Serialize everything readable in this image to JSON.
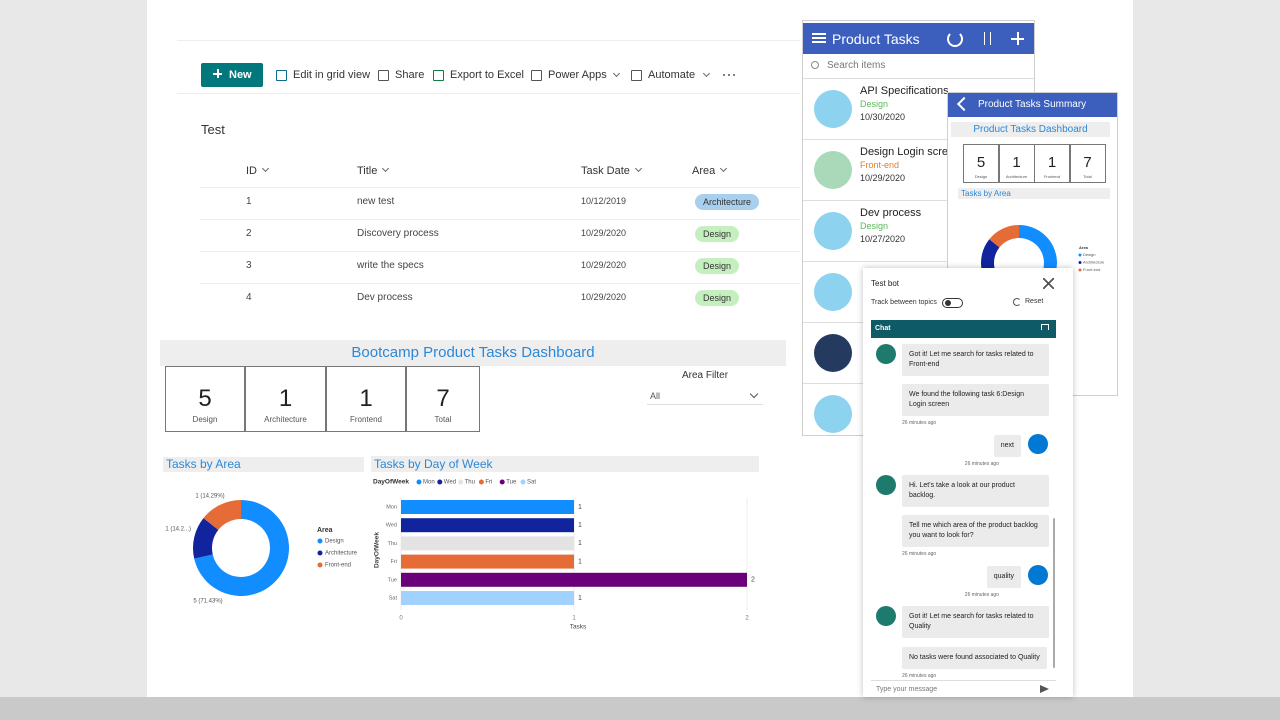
{
  "sharepoint": {
    "toolbar": {
      "new": "New",
      "items": [
        "Edit in grid view",
        "Share",
        "Export to Excel",
        "Power Apps",
        "Automate"
      ]
    },
    "list_title": "Test",
    "columns": [
      "ID",
      "Title",
      "Task Date",
      "Area"
    ],
    "rows": [
      [
        1,
        "new test",
        "10/12/2019",
        "Architecture"
      ],
      [
        2,
        "Discovery process",
        "10/29/2020",
        "Design"
      ],
      [
        3,
        "write the specs",
        "10/29/2020",
        "Design"
      ],
      [
        4,
        "Dev process",
        "10/29/2020",
        "Design"
      ]
    ]
  },
  "dashboard": {
    "title": "Bootcamp Product Tasks Dashboard",
    "cards": [
      {
        "value": 5,
        "label": "Design"
      },
      {
        "value": 1,
        "label": "Architecture"
      },
      {
        "value": 1,
        "label": "Frontend"
      },
      {
        "value": 7,
        "label": "Total"
      }
    ],
    "filter": {
      "label": "Area Filter",
      "value": "All"
    },
    "donut": {
      "type": "donut",
      "title": "Tasks by Area",
      "legend_title": "Area",
      "categories": [
        "Design",
        "Architecture",
        "Front-end"
      ],
      "values": [
        5,
        1,
        1
      ],
      "value_labels": [
        "5 (71.43%)",
        "1 (14.2...)",
        "1 (14.29%)"
      ],
      "colors": [
        "#118dff",
        "#12239e",
        "#e66c37"
      ]
    },
    "bar": {
      "type": "bar",
      "title": "Tasks by Day of Week",
      "legend_title": "DayOfWeek",
      "categories": [
        "Mon",
        "Wed",
        "Thu",
        "Fri",
        "Tue",
        "Sat"
      ],
      "values": [
        1,
        1,
        1,
        1,
        2,
        1
      ],
      "colors": [
        "#118dff",
        "#12239e",
        "#e3e3e3",
        "#e66c37",
        "#6b007b",
        "#a0d1ff"
      ],
      "xlim": [
        0,
        2
      ],
      "xticks": [
        0,
        1,
        2
      ],
      "x_label": "Tasks",
      "y_label": "DayOfWeek"
    }
  },
  "app": {
    "title": "Product Tasks",
    "search_placeholder": "Search items",
    "items": [
      {
        "title": "API Specifications",
        "area": "Design",
        "date": "10/30/2020"
      },
      {
        "title": "Design Login screen",
        "area": "Front-end",
        "date": "10/29/2020"
      },
      {
        "title": "Dev process",
        "area": "Design",
        "date": "10/27/2020"
      }
    ]
  },
  "summary": {
    "title": "Product Tasks Summary",
    "subtitle": "Product Tasks Dashboard",
    "cards": [
      {
        "value": 5,
        "label": "Design"
      },
      {
        "value": 1,
        "label": "Architecture"
      },
      {
        "value": 1,
        "label": "Frontend"
      },
      {
        "value": 7,
        "label": "Total"
      }
    ],
    "chart_title": "Tasks by Area",
    "donut": {
      "type": "donut",
      "legend_title": "Area",
      "categories": [
        "Design",
        "Architecture",
        "Front-end"
      ],
      "values": [
        5,
        1,
        1
      ],
      "colors": [
        "#118dff",
        "#12239e",
        "#e66c37"
      ]
    }
  },
  "bot": {
    "title": "Test bot",
    "toggle_label": "Track between topics",
    "reset": "Reset",
    "chat_title": "Chat",
    "messages": [
      {
        "from": "bot",
        "text": "Got it! Let me search for tasks related to Front-end"
      },
      {
        "from": "bot",
        "text": "We found the following task 6:Design Login screen",
        "time": "26 minutes ago"
      },
      {
        "from": "user",
        "text": "next",
        "time": "26 minutes ago"
      },
      {
        "from": "bot",
        "text": "Hi. Let's take a look at our product backlog."
      },
      {
        "from": "bot",
        "text": "Tell me which area of the product backlog you want to look for?",
        "time": "26 minutes ago"
      },
      {
        "from": "user",
        "text": "quality",
        "time": "26 minutes ago"
      },
      {
        "from": "bot",
        "text": "Got it! Let me search for tasks related to Quality"
      },
      {
        "from": "bot",
        "text": "No tasks were found associated to Quality",
        "time": "26 minutes ago"
      }
    ],
    "input_placeholder": "Type your message"
  }
}
